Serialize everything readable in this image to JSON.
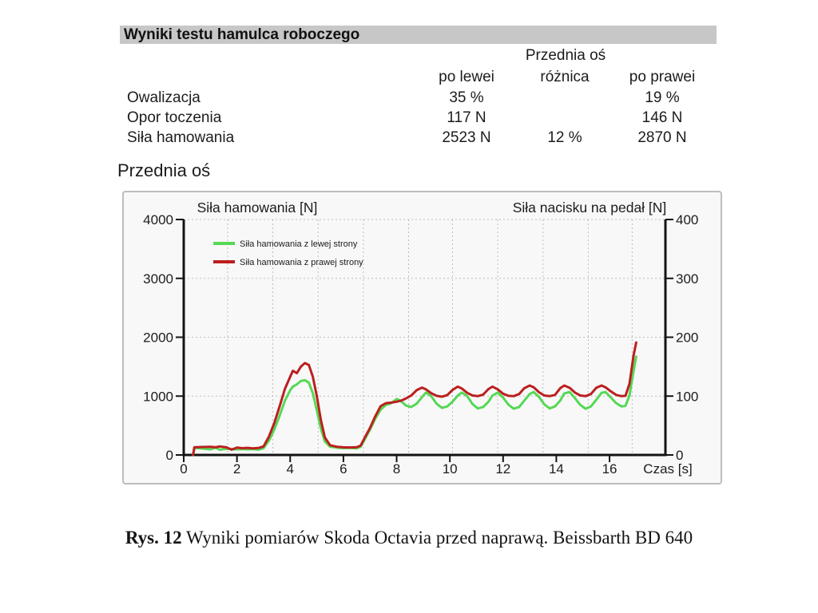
{
  "results": {
    "title": "Wyniki testu hamulca roboczego",
    "axis_header": "Przednia oś",
    "columns": {
      "left": "po lewei",
      "diff": "różnica",
      "right": "po prawei"
    },
    "rows": [
      {
        "label": "Owalizacja",
        "left": "35 %",
        "diff": "",
        "right": "19 %"
      },
      {
        "label": "Opor toczenia",
        "left": "117 N",
        "diff": "",
        "right": "146 N"
      },
      {
        "label": "Siła hamowania",
        "left": "2523 N",
        "diff": "12 %",
        "right": "2870 N"
      }
    ]
  },
  "chart_section": {
    "title": "Przednia oś"
  },
  "chart_data": {
    "type": "line",
    "title_left": "Siła hamowania [N]",
    "title_right": "Siła nacisku na pedał [N]",
    "xlabel": "Czas [s]",
    "x_range": [
      0,
      18.1
    ],
    "y_left_range": [
      0,
      4000
    ],
    "y_right_range": [
      0,
      400
    ],
    "x_ticks": [
      0,
      2,
      4,
      6,
      8,
      10,
      12,
      14,
      16
    ],
    "y_left_ticks": [
      0,
      1000,
      2000,
      3000,
      4000
    ],
    "y_right_ticks": [
      0,
      100,
      200,
      300,
      400
    ],
    "grid_x": [
      1.65,
      3.35,
      5.05,
      6.75,
      8.45,
      10.1,
      11.8,
      13.5,
      15.2,
      16.85
    ],
    "grid_y": [
      1000,
      2000,
      3000,
      4000
    ],
    "legend_position": "top-left-inside",
    "grid": "dotted",
    "axis_color": "#141414",
    "grid_color": "#bcbcbc",
    "x": [
      0.35,
      0.4,
      0.7,
      1.0,
      1.2,
      1.35,
      1.6,
      1.8,
      2.0,
      2.2,
      2.4,
      2.6,
      2.8,
      3.0,
      3.2,
      3.4,
      3.6,
      3.8,
      4.0,
      4.1,
      4.25,
      4.4,
      4.55,
      4.7,
      4.85,
      5.0,
      5.15,
      5.3,
      5.5,
      5.75,
      6.0,
      6.25,
      6.5,
      6.65,
      6.8,
      7.0,
      7.2,
      7.4,
      7.6,
      7.8,
      8.0,
      8.15,
      8.35,
      8.55,
      8.75,
      8.95,
      9.1,
      9.3,
      9.5,
      9.7,
      9.9,
      10.1,
      10.3,
      10.45,
      10.65,
      10.85,
      11.05,
      11.25,
      11.45,
      11.6,
      11.8,
      12.0,
      12.2,
      12.4,
      12.6,
      12.8,
      13.0,
      13.15,
      13.35,
      13.55,
      13.75,
      13.95,
      14.15,
      14.3,
      14.5,
      14.7,
      14.9,
      15.1,
      15.3,
      15.5,
      15.7,
      15.85,
      16.05,
      16.25,
      16.45,
      16.6,
      16.75,
      16.9,
      17.0
    ],
    "series": [
      {
        "name": "Siła hamowania z lewej strony",
        "color": "#55d855",
        "values": [
          0,
          120,
          110,
          95,
          125,
          90,
          105,
          100,
          95,
          100,
          95,
          100,
          90,
          115,
          240,
          430,
          660,
          920,
          1100,
          1160,
          1200,
          1255,
          1270,
          1230,
          1050,
          760,
          450,
          230,
          140,
          125,
          115,
          120,
          112,
          140,
          260,
          430,
          620,
          770,
          850,
          880,
          950,
          920,
          840,
          815,
          870,
          980,
          1060,
          1000,
          870,
          800,
          825,
          905,
          1010,
          1060,
          1000,
          865,
          790,
          815,
          905,
          1010,
          1060,
          975,
          855,
          785,
          815,
          925,
          1035,
          1070,
          985,
          860,
          790,
          825,
          925,
          1045,
          1070,
          965,
          850,
          785,
          825,
          935,
          1055,
          1070,
          975,
          880,
          825,
          835,
          1010,
          1420,
          1670
        ]
      },
      {
        "name": "Siła hamowania z prawej strony",
        "color": "#bb1f1f",
        "values": [
          0,
          130,
          135,
          140,
          130,
          145,
          130,
          90,
          125,
          115,
          120,
          112,
          118,
          145,
          310,
          540,
          820,
          1120,
          1330,
          1430,
          1390,
          1500,
          1560,
          1530,
          1330,
          1000,
          600,
          300,
          165,
          140,
          130,
          128,
          132,
          160,
          290,
          460,
          660,
          830,
          880,
          890,
          905,
          920,
          960,
          1010,
          1100,
          1145,
          1115,
          1050,
          1005,
          990,
          1015,
          1105,
          1160,
          1130,
          1055,
          1010,
          1000,
          1025,
          1120,
          1160,
          1115,
          1040,
          1005,
          1000,
          1035,
          1135,
          1180,
          1150,
          1065,
          1010,
          1000,
          1020,
          1135,
          1180,
          1140,
          1060,
          1010,
          1000,
          1035,
          1140,
          1180,
          1150,
          1080,
          1020,
          1000,
          1005,
          1210,
          1680,
          1910
        ]
      }
    ]
  },
  "caption": {
    "prefix": "Rys. 12",
    "text": " Wyniki pomiarów Skoda Octavia przed naprawą. Beissbarth BD 640"
  }
}
